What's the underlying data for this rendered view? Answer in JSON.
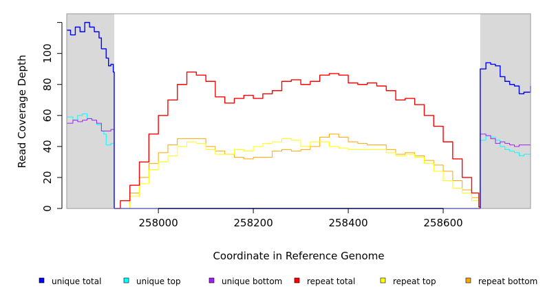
{
  "chart_data": {
    "type": "line",
    "title": "",
    "xlabel": "Coordinate in Reference Genome",
    "ylabel": "Read Coverage Depth",
    "xlim": [
      257807,
      258784
    ],
    "ylim": [
      0,
      125.6
    ],
    "x_ticks": [
      258000,
      258200,
      258400,
      258600
    ],
    "x_tick_labels": [
      "258000",
      "258200",
      "258400",
      "258600"
    ],
    "y_ticks": [
      0,
      20,
      40,
      60,
      80,
      100,
      120
    ],
    "y_tick_labels": [
      "0",
      "20",
      "40",
      "60",
      "80",
      "100",
      ""
    ],
    "shaded_regions": [
      [
        257807,
        257907
      ],
      [
        258678,
        258784
      ]
    ],
    "grid": false,
    "legend_position": "bottom",
    "series": [
      {
        "name": "unique total",
        "color": "#0000ff",
        "points": [
          [
            257807,
            115
          ],
          [
            257815,
            112
          ],
          [
            257825,
            117
          ],
          [
            257835,
            114
          ],
          [
            257845,
            120
          ],
          [
            257855,
            117
          ],
          [
            257865,
            114
          ],
          [
            257875,
            110
          ],
          [
            257880,
            103
          ],
          [
            257890,
            97
          ],
          [
            257895,
            92
          ],
          [
            257900,
            93
          ],
          [
            257905,
            88
          ],
          [
            257907,
            87
          ],
          [
            257907,
            0
          ],
          [
            258678,
            0
          ],
          [
            258678,
            90
          ],
          [
            258690,
            94
          ],
          [
            258700,
            93
          ],
          [
            258710,
            92
          ],
          [
            258720,
            85
          ],
          [
            258730,
            82
          ],
          [
            258740,
            80
          ],
          [
            258750,
            79
          ],
          [
            258760,
            74
          ],
          [
            258770,
            75
          ],
          [
            258784,
            79
          ]
        ]
      },
      {
        "name": "unique top",
        "color": "#00ffff",
        "points": [
          [
            257807,
            59
          ],
          [
            257820,
            57
          ],
          [
            257830,
            60
          ],
          [
            257840,
            61
          ],
          [
            257850,
            58
          ],
          [
            257860,
            57
          ],
          [
            257870,
            54
          ],
          [
            257880,
            50
          ],
          [
            257885,
            48
          ],
          [
            257890,
            41
          ],
          [
            257900,
            42
          ],
          [
            257907,
            40
          ],
          [
            257907,
            0
          ],
          [
            258678,
            0
          ],
          [
            258678,
            44
          ],
          [
            258690,
            47
          ],
          [
            258700,
            46
          ],
          [
            258710,
            44
          ],
          [
            258720,
            40
          ],
          [
            258730,
            38
          ],
          [
            258740,
            37
          ],
          [
            258750,
            36
          ],
          [
            258760,
            34
          ],
          [
            258770,
            35
          ],
          [
            258784,
            37
          ]
        ]
      },
      {
        "name": "unique bottom",
        "color": "#a020f0",
        "points": [
          [
            257807,
            55
          ],
          [
            257820,
            57
          ],
          [
            257830,
            56
          ],
          [
            257840,
            57
          ],
          [
            257850,
            58
          ],
          [
            257860,
            57
          ],
          [
            257870,
            55
          ],
          [
            257880,
            50
          ],
          [
            257890,
            50
          ],
          [
            257900,
            51
          ],
          [
            257907,
            47
          ],
          [
            257907,
            0
          ],
          [
            258678,
            0
          ],
          [
            258678,
            48
          ],
          [
            258690,
            47
          ],
          [
            258700,
            45
          ],
          [
            258710,
            42
          ],
          [
            258720,
            43
          ],
          [
            258730,
            42
          ],
          [
            258740,
            41
          ],
          [
            258750,
            40
          ],
          [
            258760,
            41
          ],
          [
            258770,
            41
          ],
          [
            258784,
            42
          ]
        ]
      },
      {
        "name": "repeat total",
        "color": "#ff0000",
        "points": [
          [
            257907,
            0
          ],
          [
            257920,
            5
          ],
          [
            257940,
            15
          ],
          [
            257960,
            30
          ],
          [
            257980,
            48
          ],
          [
            258000,
            60
          ],
          [
            258020,
            70
          ],
          [
            258040,
            80
          ],
          [
            258060,
            88
          ],
          [
            258080,
            86
          ],
          [
            258100,
            82
          ],
          [
            258120,
            72
          ],
          [
            258140,
            68
          ],
          [
            258160,
            71
          ],
          [
            258180,
            73
          ],
          [
            258200,
            71
          ],
          [
            258220,
            74
          ],
          [
            258240,
            76
          ],
          [
            258260,
            82
          ],
          [
            258280,
            83
          ],
          [
            258300,
            80
          ],
          [
            258320,
            82
          ],
          [
            258340,
            86
          ],
          [
            258360,
            87
          ],
          [
            258380,
            86
          ],
          [
            258400,
            81
          ],
          [
            258420,
            80
          ],
          [
            258440,
            81
          ],
          [
            258460,
            79
          ],
          [
            258480,
            76
          ],
          [
            258500,
            70
          ],
          [
            258520,
            71
          ],
          [
            258540,
            67
          ],
          [
            258560,
            60
          ],
          [
            258580,
            53
          ],
          [
            258600,
            43
          ],
          [
            258620,
            32
          ],
          [
            258640,
            20
          ],
          [
            258660,
            10
          ],
          [
            258675,
            1
          ],
          [
            258678,
            0
          ]
        ]
      },
      {
        "name": "repeat top",
        "color": "#ffff00",
        "points": [
          [
            257907,
            0
          ],
          [
            257940,
            8
          ],
          [
            257960,
            16
          ],
          [
            257980,
            25
          ],
          [
            258000,
            30
          ],
          [
            258020,
            34
          ],
          [
            258040,
            40
          ],
          [
            258060,
            43
          ],
          [
            258080,
            42
          ],
          [
            258100,
            38
          ],
          [
            258120,
            35
          ],
          [
            258140,
            35
          ],
          [
            258160,
            38
          ],
          [
            258180,
            37
          ],
          [
            258200,
            40
          ],
          [
            258220,
            42
          ],
          [
            258240,
            43
          ],
          [
            258260,
            45
          ],
          [
            258280,
            44
          ],
          [
            258300,
            40
          ],
          [
            258320,
            43
          ],
          [
            258340,
            43
          ],
          [
            258360,
            40
          ],
          [
            258380,
            39
          ],
          [
            258400,
            38
          ],
          [
            258420,
            38
          ],
          [
            258440,
            38
          ],
          [
            258460,
            38
          ],
          [
            258480,
            36
          ],
          [
            258500,
            34
          ],
          [
            258520,
            35
          ],
          [
            258540,
            33
          ],
          [
            258560,
            29
          ],
          [
            258580,
            24
          ],
          [
            258600,
            18
          ],
          [
            258620,
            13
          ],
          [
            258640,
            10
          ],
          [
            258660,
            5
          ],
          [
            258675,
            1
          ],
          [
            258678,
            0
          ]
        ]
      },
      {
        "name": "repeat bottom",
        "color": "#ffa500",
        "points": [
          [
            257807,
            0
          ],
          [
            257907,
            0
          ],
          [
            257940,
            10
          ],
          [
            257960,
            20
          ],
          [
            257980,
            29
          ],
          [
            258000,
            36
          ],
          [
            258020,
            41
          ],
          [
            258040,
            45
          ],
          [
            258060,
            45
          ],
          [
            258080,
            45
          ],
          [
            258100,
            40
          ],
          [
            258120,
            37
          ],
          [
            258140,
            35
          ],
          [
            258160,
            33
          ],
          [
            258180,
            32
          ],
          [
            258200,
            33
          ],
          [
            258220,
            33
          ],
          [
            258240,
            37
          ],
          [
            258260,
            38
          ],
          [
            258280,
            37
          ],
          [
            258300,
            38
          ],
          [
            258320,
            40
          ],
          [
            258340,
            46
          ],
          [
            258360,
            48
          ],
          [
            258380,
            46
          ],
          [
            258400,
            43
          ],
          [
            258420,
            42
          ],
          [
            258440,
            41
          ],
          [
            258460,
            41
          ],
          [
            258480,
            38
          ],
          [
            258500,
            35
          ],
          [
            258520,
            36
          ],
          [
            258540,
            34
          ],
          [
            258560,
            31
          ],
          [
            258580,
            28
          ],
          [
            258600,
            24
          ],
          [
            258620,
            18
          ],
          [
            258640,
            12
          ],
          [
            258660,
            7
          ],
          [
            258675,
            1
          ],
          [
            258678,
            0
          ],
          [
            258784,
            0
          ]
        ]
      }
    ]
  }
}
